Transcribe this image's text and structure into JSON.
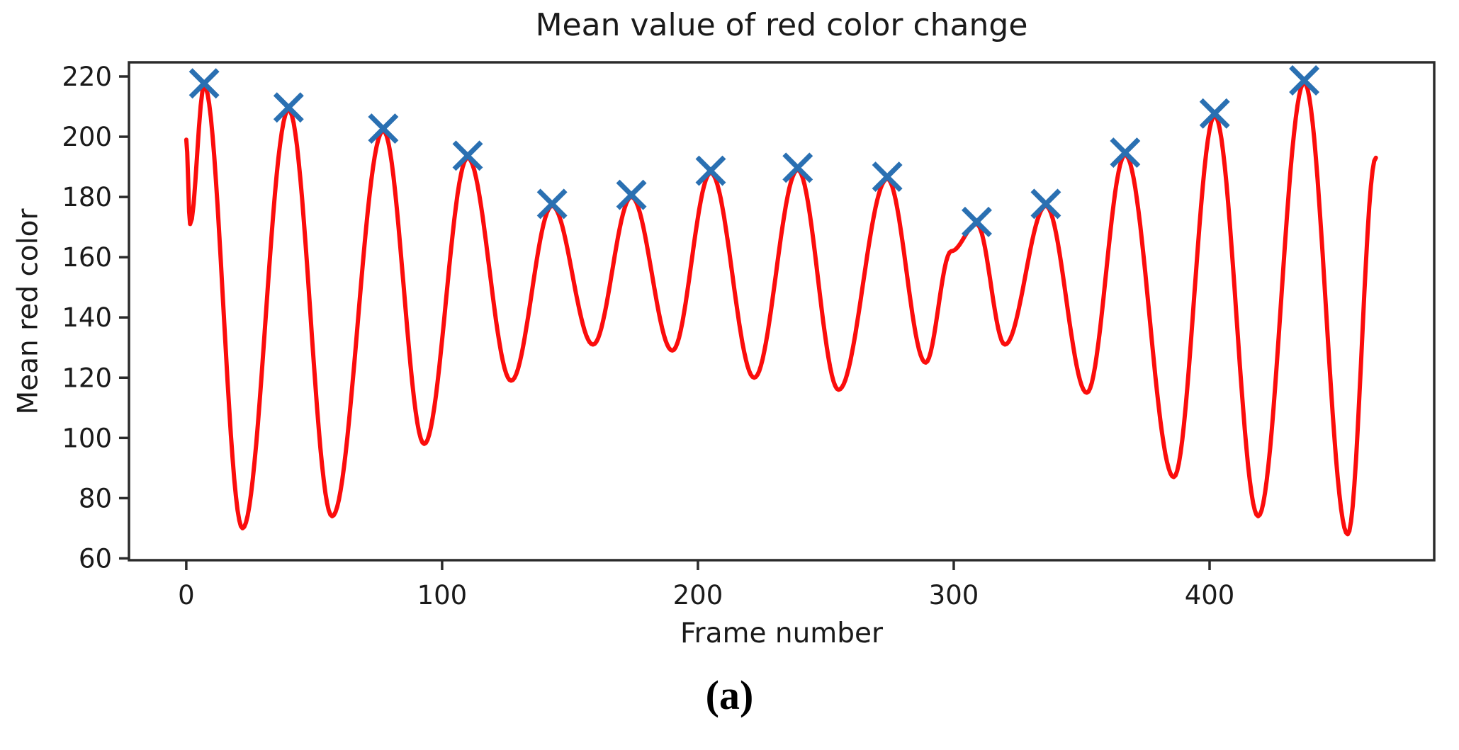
{
  "figure": {
    "caption": "(a)"
  },
  "chart_data": {
    "type": "line",
    "title": "Mean value of red color change",
    "xlabel": "Frame number",
    "ylabel": "Mean red color",
    "xlim": [
      -22.4,
      487.8
    ],
    "ylim": [
      59.4,
      224.7
    ],
    "xticks": [
      0,
      100,
      200,
      300,
      400
    ],
    "yticks": [
      60,
      80,
      100,
      120,
      140,
      160,
      180,
      200,
      220
    ],
    "grid": false,
    "legend_position": "none",
    "axis_color": "#2b2b2b",
    "series": [
      {
        "name": "mean-red-curve",
        "type": "line",
        "color": "#fb0d0c",
        "line_width": 6,
        "interpolation": "cosine-through-extrema",
        "points": [
          [
            0,
            199
          ],
          [
            1.5,
            171
          ],
          [
            7,
            217
          ],
          [
            22,
            70
          ],
          [
            40,
            209
          ],
          [
            57,
            74
          ],
          [
            77,
            202
          ],
          [
            93,
            98
          ],
          [
            110,
            193
          ],
          [
            127,
            119
          ],
          [
            143,
            177
          ],
          [
            159,
            131
          ],
          [
            174,
            180
          ],
          [
            190,
            129
          ],
          [
            205,
            188
          ],
          [
            222,
            120
          ],
          [
            239,
            189
          ],
          [
            255,
            116
          ],
          [
            274,
            186
          ],
          [
            289,
            125
          ],
          [
            299,
            162
          ],
          [
            309,
            171
          ],
          [
            320,
            131
          ],
          [
            336,
            177
          ],
          [
            352,
            115
          ],
          [
            367,
            194
          ],
          [
            386,
            87
          ],
          [
            402,
            207
          ],
          [
            419,
            74
          ],
          [
            437,
            218
          ],
          [
            454,
            68
          ],
          [
            465,
            193
          ]
        ]
      },
      {
        "name": "detected-peaks",
        "type": "scatter",
        "marker": "x",
        "color": "#2a70b2",
        "marker_size": 38,
        "points": [
          [
            7,
            217
          ],
          [
            40,
            209
          ],
          [
            77,
            202
          ],
          [
            110,
            193
          ],
          [
            143,
            177
          ],
          [
            174,
            180
          ],
          [
            205,
            188
          ],
          [
            239,
            189
          ],
          [
            274,
            186
          ],
          [
            309,
            171
          ],
          [
            336,
            177
          ],
          [
            367,
            194
          ],
          [
            402,
            207
          ],
          [
            437,
            218
          ]
        ]
      }
    ]
  }
}
